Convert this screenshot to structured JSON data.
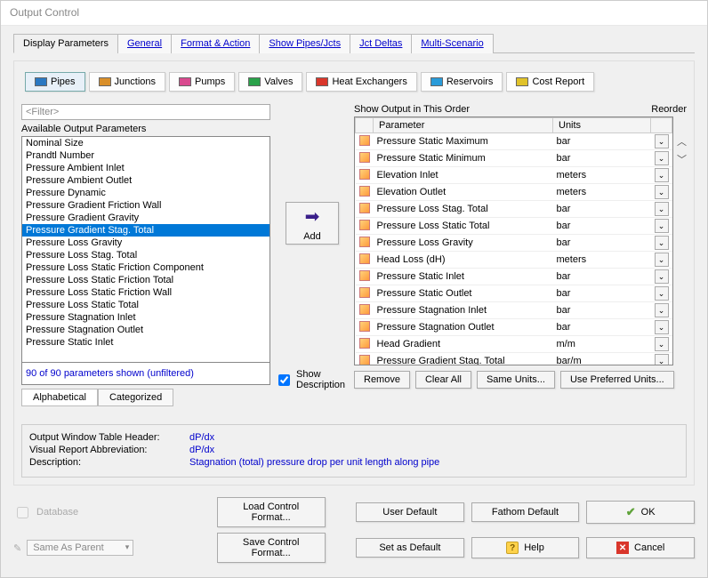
{
  "window": {
    "title": "Output Control"
  },
  "mainTabs": [
    "Display Parameters",
    "General",
    "Format & Action",
    "Show Pipes/Jcts",
    "Jct Deltas",
    "Multi-Scenario"
  ],
  "mainTabActive": 0,
  "subTabs": [
    {
      "label": "Pipes",
      "color": "#2a78c2"
    },
    {
      "label": "Junctions",
      "color": "#d98f2a"
    },
    {
      "label": "Pumps",
      "color": "#d94a8f"
    },
    {
      "label": "Valves",
      "color": "#2aa24a"
    },
    {
      "label": "Heat Exchangers",
      "color": "#d9362b"
    },
    {
      "label": "Reservoirs",
      "color": "#2a9bd9"
    },
    {
      "label": "Cost Report",
      "color": "#e0c22a"
    }
  ],
  "subTabActive": 0,
  "filterPlaceholder": "<Filter>",
  "availableLabel": "Available Output Parameters",
  "availableParams": [
    "Nominal Size",
    "Prandtl Number",
    "Pressure Ambient Inlet",
    "Pressure Ambient Outlet",
    "Pressure Dynamic",
    "Pressure Gradient Friction Wall",
    "Pressure Gradient Gravity",
    "Pressure Gradient Stag. Total",
    "Pressure Loss Gravity",
    "Pressure Loss Stag. Total",
    "Pressure Loss Static Friction Component",
    "Pressure Loss Static Friction Total",
    "Pressure Loss Static Friction Wall",
    "Pressure Loss Static Total",
    "Pressure Stagnation Inlet",
    "Pressure Stagnation Outlet",
    "Pressure Static Inlet"
  ],
  "selectedParamIndex": 7,
  "paramCount": "90 of 90 parameters shown (unfiltered)",
  "sortTabs": [
    "Alphabetical",
    "Categorized"
  ],
  "sortTabActive": 0,
  "addLabel": "Add",
  "showDesc": {
    "label": "Show Description",
    "checked": true
  },
  "outputHeader": "Show Output in This Order",
  "reorderLabel": "Reorder",
  "outputCols": [
    "",
    "Parameter",
    "Units",
    ""
  ],
  "outputRows": [
    {
      "param": "Pressure Static Maximum",
      "unit": "bar"
    },
    {
      "param": "Pressure Static Minimum",
      "unit": "bar"
    },
    {
      "param": "Elevation Inlet",
      "unit": "meters"
    },
    {
      "param": "Elevation Outlet",
      "unit": "meters"
    },
    {
      "param": "Pressure Loss Stag. Total",
      "unit": "bar"
    },
    {
      "param": "Pressure Loss Static Total",
      "unit": "bar"
    },
    {
      "param": "Pressure Loss Gravity",
      "unit": "bar"
    },
    {
      "param": "Head Loss (dH)",
      "unit": "meters"
    },
    {
      "param": "Pressure Static Inlet",
      "unit": "bar"
    },
    {
      "param": "Pressure Static Outlet",
      "unit": "bar"
    },
    {
      "param": "Pressure Stagnation Inlet",
      "unit": "bar"
    },
    {
      "param": "Pressure Stagnation Outlet",
      "unit": "bar"
    },
    {
      "param": "Head Gradient",
      "unit": "m/m"
    },
    {
      "param": "Pressure Gradient Stag. Total",
      "unit": "bar/m"
    }
  ],
  "outputBtns": [
    "Remove",
    "Clear All",
    "Same Units...",
    "Use Preferred Units..."
  ],
  "desc": {
    "header": {
      "label": "Output Window Table Header:",
      "val": "dP/dx"
    },
    "abbrev": {
      "label": "Visual Report Abbreviation:",
      "val": "dP/dx"
    },
    "description": {
      "label": "Description:",
      "val": "Stagnation (total) pressure drop per unit length along pipe"
    }
  },
  "footer": {
    "database": "Database",
    "sameAsParent": "Same As Parent",
    "loadFormat": "Load Control Format...",
    "saveFormat": "Save Control Format...",
    "userDefault": "User Default",
    "setAsDefault": "Set as Default",
    "fathomDefault": "Fathom Default",
    "help": "Help",
    "ok": "OK",
    "cancel": "Cancel"
  }
}
